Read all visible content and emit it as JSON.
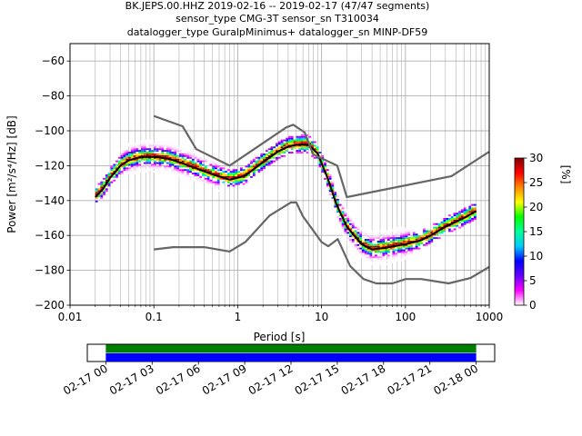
{
  "chart_data": {
    "type": "heatmap",
    "title_lines": [
      "BK.JEPS.00.HHZ   2019-02-16 -- 2019-02-17  (47/47 segments)",
      "sensor_type CMG-3T sensor_sn T310034",
      "datalogger_type GuralpMinimus+ datalogger_sn MINP-DF59"
    ],
    "xlabel": "Period [s]",
    "ylabel": "Power [m²/s⁴/Hz] [dB]",
    "x_scale": "log",
    "xlim": [
      0.01,
      1000
    ],
    "ylim": [
      -200,
      -50
    ],
    "x_ticks": [
      {
        "value": 0.01,
        "label": "0.01"
      },
      {
        "value": 0.1,
        "label": "0.1"
      },
      {
        "value": 1,
        "label": "1"
      },
      {
        "value": 10,
        "label": "10"
      },
      {
        "value": 100,
        "label": "100"
      },
      {
        "value": 1000,
        "label": "1000"
      }
    ],
    "y_ticks": [
      {
        "value": -60,
        "label": "−60"
      },
      {
        "value": -80,
        "label": "−80"
      },
      {
        "value": -100,
        "label": "−100"
      },
      {
        "value": -120,
        "label": "−120"
      },
      {
        "value": -140,
        "label": "−140"
      },
      {
        "value": -160,
        "label": "−160"
      },
      {
        "value": -180,
        "label": "−180"
      },
      {
        "value": -200,
        "label": "−200"
      }
    ],
    "grid": true,
    "colorbar": {
      "label": "[%]",
      "range": [
        0,
        30
      ],
      "ticks": [
        {
          "value": 0,
          "label": "0"
        },
        {
          "value": 5,
          "label": "5"
        },
        {
          "value": 10,
          "label": "10"
        },
        {
          "value": 15,
          "label": "15"
        },
        {
          "value": 20,
          "label": "20"
        },
        {
          "value": 25,
          "label": "25"
        },
        {
          "value": 30,
          "label": "30"
        }
      ],
      "colors": [
        "#ffffff",
        "#ff00ff",
        "#6600ff",
        "#0000ff",
        "#00ccff",
        "#00ff99",
        "#00ff00",
        "#ffff00",
        "#ff8800",
        "#ff0000",
        "#800000"
      ]
    },
    "series": [
      {
        "role": "mode",
        "color": "#000000",
        "x": [
          0.02,
          0.025,
          0.03,
          0.04,
          0.05,
          0.07,
          0.1,
          0.15,
          0.2,
          0.3,
          0.5,
          0.8,
          1.2,
          2,
          3,
          4,
          5,
          7,
          9,
          12,
          15,
          20,
          30,
          40,
          60,
          100,
          150,
          200,
          300,
          500,
          700
        ],
        "y": [
          -138,
          -133,
          -127,
          -120,
          -117,
          -115,
          -115,
          -116,
          -118,
          -121,
          -125,
          -128,
          -126,
          -118,
          -112,
          -109,
          -108,
          -108,
          -113,
          -128,
          -142,
          -155,
          -165,
          -168,
          -167,
          -165,
          -163,
          -160,
          -155,
          -150,
          -146
        ]
      },
      {
        "role": "high-noise-model",
        "color": "#666666",
        "x": [
          0.1,
          0.22,
          0.32,
          0.8,
          3.8,
          4.6,
          6.3,
          7.9,
          15.4,
          20,
          354.8,
          1000
        ],
        "y": [
          -91.5,
          -97.4,
          -110.5,
          -120,
          -98,
          -96.5,
          -101,
          -113.5,
          -120,
          -138,
          -126,
          -112
        ]
      },
      {
        "role": "low-noise-model",
        "color": "#666666",
        "x": [
          0.1,
          0.17,
          0.4,
          0.8,
          1.24,
          2.4,
          4.3,
          5,
          6,
          10,
          12,
          15.6,
          21.9,
          31.6,
          45,
          70,
          101,
          154,
          328,
          600,
          1000
        ],
        "y": [
          -168,
          -166.7,
          -166.7,
          -169.2,
          -163.7,
          -148.6,
          -141.1,
          -141.1,
          -149,
          -163.8,
          -166.2,
          -162.1,
          -177.5,
          -185,
          -187.5,
          -187.5,
          -185,
          -185,
          -187.5,
          -184.4,
          -178
        ]
      }
    ],
    "time_axis": {
      "tick_labels": [
        "02-17 00",
        "02-17 03",
        "02-17 06",
        "02-17 09",
        "02-17 12",
        "02-17 15",
        "02-17 18",
        "02-17 21",
        "02-18 00"
      ],
      "tick_hours": [
        0,
        3,
        6,
        9,
        12,
        15,
        18,
        21,
        24
      ],
      "range_hours": [
        -1.2,
        25.2
      ],
      "coverage": [
        {
          "start_hour": 0,
          "end_hour": 24,
          "color": "#008000"
        },
        {
          "start_hour": 0,
          "end_hour": 24,
          "color": "#0000ff"
        }
      ]
    }
  }
}
